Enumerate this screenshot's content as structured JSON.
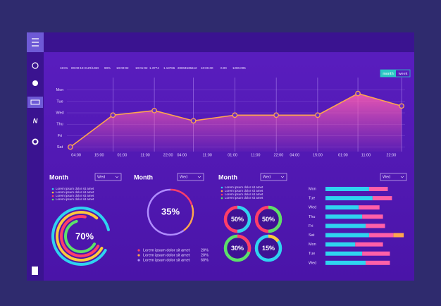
{
  "header": {
    "ticker": [
      "18:01",
      "00:00:19",
      "EUR/USD",
      "90%",
      "10:00:02",
      "10:01:02",
      "1.3774",
      "1.13786",
      "20004535612",
      "10:00.00",
      "0.00",
      "1200.005"
    ],
    "toggle": [
      "month",
      "week"
    ]
  },
  "sidebar": {
    "logo_letter": "N"
  },
  "chart_data": [
    {
      "type": "line",
      "x": [
        -0.25,
        1.6,
        3.4,
        5.1,
        6.9,
        8.7,
        10.5,
        12.25,
        14.15
      ],
      "series": [
        {
          "color": "#ffa64d",
          "values": [
            0,
            2.8,
            3.2,
            2.3,
            2.8,
            2.8,
            2.8,
            4.7,
            3.6
          ]
        }
      ],
      "xlim": [
        -0.4,
        14.3
      ],
      "xticks": [
        {
          "value": 0,
          "label": "04:00"
        },
        {
          "value": 1,
          "label": "15:00"
        },
        {
          "value": 2,
          "label": "01:00"
        },
        {
          "value": 3,
          "label": "11:00"
        },
        {
          "value": 4,
          "label": "22:00"
        },
        {
          "value": 4.6,
          "label": "04:00"
        },
        {
          "value": 5.7,
          "label": "11:00"
        },
        {
          "value": 6.8,
          "label": "01:00"
        },
        {
          "value": 7.8,
          "label": "11:00"
        },
        {
          "value": 8.8,
          "label": "22:00"
        },
        {
          "value": 9.5,
          "label": "04:00"
        },
        {
          "value": 10.5,
          "label": "15:00"
        },
        {
          "value": 11.6,
          "label": "01:00"
        },
        {
          "value": 12.6,
          "label": "11:00"
        },
        {
          "value": 13.7,
          "label": "22:00"
        }
      ],
      "ylim": [
        -0.4,
        5.6
      ],
      "yticks": [
        {
          "value": 5,
          "label": "Mon"
        },
        {
          "value": 4,
          "label": "Tue"
        },
        {
          "value": 3,
          "label": "Wed"
        },
        {
          "value": 2,
          "label": "Thu"
        },
        {
          "value": 1,
          "label": "Fri"
        },
        {
          "value": 0,
          "label": "Sat"
        }
      ],
      "grid": true
    },
    {
      "type": "radial",
      "title": "Month",
      "dropdown": "Wed",
      "categories": [
        "Lorem ipsum dolor sit amet",
        "Lorem ipsum dolor sit amet",
        "Lorem ipsum dolor sit amet",
        "Lorem ipsum dolor sit amet"
      ],
      "values": [
        88,
        78,
        70,
        62
      ],
      "colors": [
        "#2fd3f0",
        "#ffc83c",
        "#ff3d6a",
        "#5ce06a"
      ],
      "center_value": 70,
      "center_label": "70%"
    },
    {
      "type": "donut",
      "title": "Month",
      "dropdown": "Wed",
      "categories": [
        "Lorem ipsum dolor sit amet",
        "Lorem ipsum dolor sit amet",
        "Lorem ipsum dolor sit amet"
      ],
      "values": [
        20,
        20,
        60
      ],
      "value_labels": [
        "20%",
        "20%",
        "60%"
      ],
      "colors": [
        "#ff3d6a",
        "#ffa64d",
        "#b08cff"
      ],
      "center_value": 35,
      "center_label": "35%"
    },
    {
      "type": "donuts",
      "title": "Month",
      "dropdown": "Wed",
      "legend": [
        "Lorem ipsum dolor sit amet",
        "Lorem ipsum dolor sit amet",
        "Lorem ipsum dolor sit amet",
        "Lorem ipsum dolor sit amet"
      ],
      "legend_colors": [
        "#2fd3f0",
        "#ffa64d",
        "#ff3d6a",
        "#5ce06a"
      ],
      "values": [
        50,
        50,
        30,
        15
      ],
      "value_labels": [
        "50%",
        "50%",
        "30%",
        "15%"
      ],
      "colors": [
        [
          "#2fd3f0",
          "#ff3d6a"
        ],
        [
          "#5ce06a",
          "#ff3d6a"
        ],
        [
          "#ff3d6a",
          "#5ce06a"
        ],
        [
          "#ffc83c",
          "#2fd3f0"
        ]
      ]
    },
    {
      "type": "bar",
      "orientation": "horizontal",
      "dropdown": "Wed",
      "categories": [
        "Mon",
        "Tue",
        "Wed",
        "Thu",
        "Fri",
        "Sat",
        "Mon",
        "Tue",
        "Wed"
      ],
      "series": [
        {
          "color": "#2fd3f0",
          "values": [
            63,
            68,
            48,
            53,
            58,
            63,
            43,
            53,
            58
          ]
        },
        {
          "color": "#ff5fa8",
          "values": [
            27,
            28,
            30,
            30,
            28,
            35,
            40,
            40,
            35
          ]
        },
        {
          "color": "#ffa64d",
          "values": [
            null,
            null,
            null,
            null,
            null,
            15,
            null,
            null,
            null
          ]
        }
      ],
      "xlim": [
        0,
        120
      ]
    }
  ]
}
